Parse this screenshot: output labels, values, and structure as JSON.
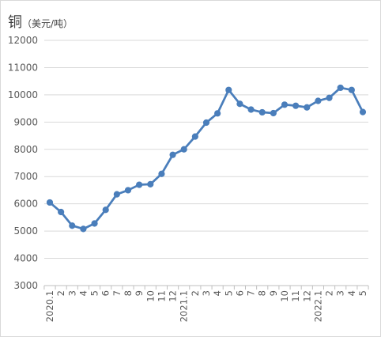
{
  "chart_data": {
    "type": "line",
    "title": "铜",
    "unit_label": "（美元/吨）",
    "xlabel": "",
    "ylabel": "",
    "ylim": [
      3000,
      12000
    ],
    "yticks": [
      3000,
      4000,
      5000,
      6000,
      7000,
      8000,
      9000,
      10000,
      11000,
      12000
    ],
    "grid": true,
    "legend": "none",
    "colors": {
      "line": "#4a7ebb",
      "grid": "#d9d9d9",
      "axis": "#bfbfbf"
    },
    "categories": [
      "2020.1",
      "2",
      "3",
      "4",
      "5",
      "6",
      "7",
      "8",
      "9",
      "10",
      "11",
      "12",
      "2021.1",
      "2",
      "3",
      "4",
      "5",
      "6",
      "7",
      "8",
      "9",
      "10",
      "11",
      "12",
      "2022.1",
      "2",
      "3",
      "4",
      "5"
    ],
    "series": [
      {
        "values": [
          6050,
          5700,
          5200,
          5080,
          5280,
          5780,
          6350,
          6500,
          6700,
          6720,
          7100,
          7800,
          8000,
          8470,
          8980,
          9320,
          10180,
          9670,
          9460,
          9360,
          9330,
          9640,
          9600,
          9540,
          9780,
          9890,
          10260,
          10180,
          9370
        ]
      }
    ]
  }
}
